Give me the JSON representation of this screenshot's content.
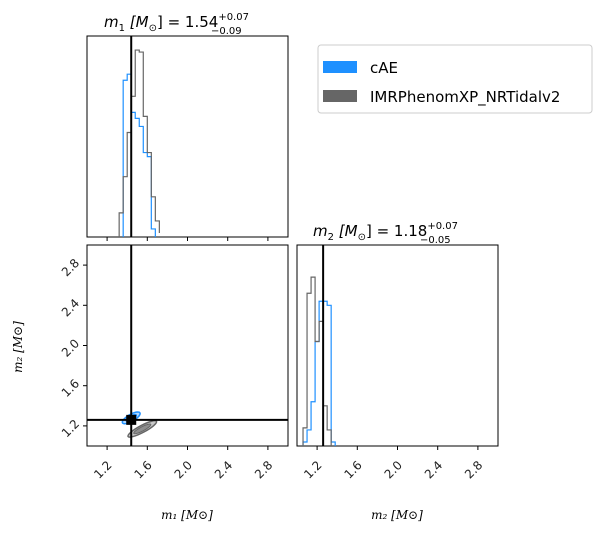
{
  "chart_data": {
    "type": "corner",
    "titles": {
      "m1": {
        "prefix": "m",
        "sub": "1",
        "unit_open": " [M",
        "unit_sub": "⊙",
        "unit_close": "] = 1.54",
        "sup": "+0.07",
        "low": "−0.09"
      },
      "m2": {
        "prefix": "m",
        "sub": "2",
        "unit_open": " [M",
        "unit_sub": "⊙",
        "unit_close": "] = 1.18",
        "sup": "+0.07",
        "low": "−0.05"
      }
    },
    "xlabels": {
      "m1": "m₁ [M⊙]",
      "m2": "m₂ [M⊙]"
    },
    "ylabel_m2": "m₂ [M⊙]",
    "axis_range": [
      1.0,
      3.0
    ],
    "ticks": [
      1.2,
      1.6,
      2.0,
      2.4,
      2.8
    ],
    "tick_labels": [
      "1.2",
      "1.6",
      "2.0",
      "2.4",
      "2.8"
    ],
    "injection": {
      "m1": 1.44,
      "m2": 1.26
    },
    "series": [
      {
        "name": "cAE",
        "color": "#1e90ff",
        "m1_hist": {
          "edges": [
            1.36,
            1.4,
            1.44,
            1.48,
            1.52,
            1.56,
            1.6,
            1.64,
            1.68
          ],
          "counts": [
            0.78,
            0.81,
            0.62,
            0.59,
            0.55,
            0.42,
            0.4,
            0.04
          ]
        },
        "m2_hist": {
          "edges": [
            1.06,
            1.1,
            1.14,
            1.18,
            1.22,
            1.26,
            1.3,
            1.34,
            1.38
          ],
          "counts": [
            0.02,
            0.08,
            0.22,
            0.52,
            0.72,
            0.72,
            0.7,
            0.02
          ]
        },
        "joint_ellipse": {
          "cx": 1.44,
          "cy": 1.28,
          "rx": 0.1,
          "ry": 0.035,
          "angle_deg": -30
        }
      },
      {
        "name": "IMRPhenomXP_NRTidalv2",
        "color": "#666666",
        "m1_hist": {
          "edges": [
            1.32,
            1.36,
            1.4,
            1.44,
            1.48,
            1.52,
            1.56,
            1.6,
            1.64,
            1.68,
            1.72
          ],
          "counts": [
            0.12,
            0.3,
            0.52,
            0.7,
            0.93,
            0.92,
            0.6,
            0.42,
            0.2,
            0.08,
            0.02
          ]
        },
        "m2_hist": {
          "edges": [
            1.06,
            1.1,
            1.14,
            1.18,
            1.22,
            1.26,
            1.3,
            1.34
          ],
          "counts": [
            0.09,
            0.76,
            0.84,
            0.52,
            0.62,
            0.2,
            0.08
          ]
        },
        "joint_ellipse": {
          "cx": 1.55,
          "cy": 1.17,
          "rx": 0.16,
          "ry": 0.035,
          "angle_deg": -28
        }
      }
    ],
    "legend_position": "top-right"
  }
}
